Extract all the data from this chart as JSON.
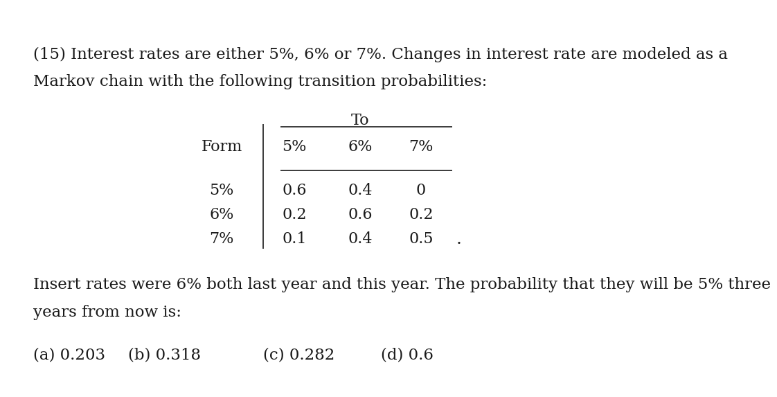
{
  "bg_color": "#ffffff",
  "text_color": "#1a1a1a",
  "header_line1": "(15) Interest rates are either 5%, 6% or 7%. Changes in interest rate are modeled as a",
  "header_line2": "Markov chain with the following transition probabilities:",
  "footer_line1": "Insert rates were 6% both last year and this year. The probability that they will be 5% three",
  "footer_line2": "years from now is:",
  "table_rows": [
    [
      "5%",
      "0.6",
      "0.4",
      "0"
    ],
    [
      "6%",
      "0.2",
      "0.6",
      "0.2"
    ],
    [
      "7%",
      "0.1",
      "0.4",
      "0.5"
    ]
  ],
  "options": [
    "(a) 0.203",
    "(b) 0.318",
    "(c) 0.282",
    "(d) 0.6"
  ],
  "font_size_body": 16.5,
  "font_size_table": 16.0,
  "font_family": "DejaVu Serif"
}
